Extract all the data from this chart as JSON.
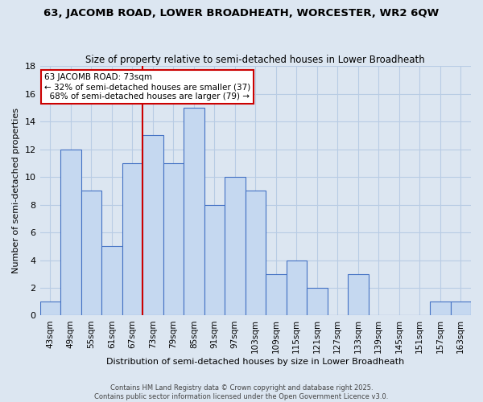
{
  "title_line1": "63, JACOMB ROAD, LOWER BROADHEATH, WORCESTER, WR2 6QW",
  "title_line2": "Size of property relative to semi-detached houses in Lower Broadheath",
  "xlabel": "Distribution of semi-detached houses by size in Lower Broadheath",
  "ylabel": "Number of semi-detached properties",
  "categories": [
    "43sqm",
    "49sqm",
    "55sqm",
    "61sqm",
    "67sqm",
    "73sqm",
    "79sqm",
    "85sqm",
    "91sqm",
    "97sqm",
    "103sqm",
    "109sqm",
    "115sqm",
    "121sqm",
    "127sqm",
    "133sqm",
    "139sqm",
    "145sqm",
    "151sqm",
    "157sqm",
    "163sqm"
  ],
  "values": [
    1,
    12,
    9,
    5,
    11,
    13,
    11,
    15,
    8,
    10,
    9,
    3,
    4,
    2,
    0,
    3,
    0,
    0,
    0,
    1,
    1
  ],
  "highlight_index": 5,
  "highlight_label": "63 JACOMB ROAD: 73sqm",
  "pct_smaller": 32,
  "pct_larger": 68,
  "n_smaller": 37,
  "n_larger": 79,
  "bar_color": "#c5d8f0",
  "bar_edge_color": "#4472c4",
  "highlight_line_color": "#cc0000",
  "annotation_box_edge_color": "#cc0000",
  "ylim": [
    0,
    18
  ],
  "yticks": [
    0,
    2,
    4,
    6,
    8,
    10,
    12,
    14,
    16,
    18
  ],
  "grid_color": "#b8cce4",
  "bg_color": "#dce6f1",
  "footer_line1": "Contains HM Land Registry data © Crown copyright and database right 2025.",
  "footer_line2": "Contains public sector information licensed under the Open Government Licence v3.0."
}
